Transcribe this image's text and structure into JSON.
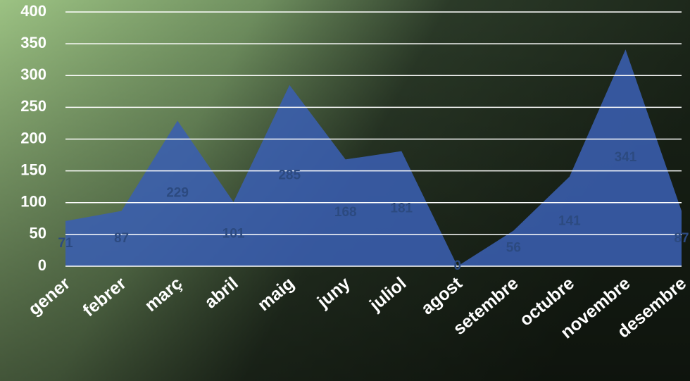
{
  "chart_data": {
    "type": "area",
    "categories": [
      "gener",
      "febrer",
      "març",
      "abril",
      "maig",
      "juny",
      "juliol",
      "agost",
      "setembre",
      "octubre",
      "novembre",
      "desembre"
    ],
    "values": [
      71,
      87,
      229,
      101,
      285,
      168,
      181,
      0,
      56,
      141,
      341,
      87
    ],
    "color": "#3a5fb0",
    "ylim": [
      0,
      400
    ],
    "yticks": [
      0,
      50,
      100,
      150,
      200,
      250,
      300,
      350,
      400
    ],
    "grid": true
  }
}
